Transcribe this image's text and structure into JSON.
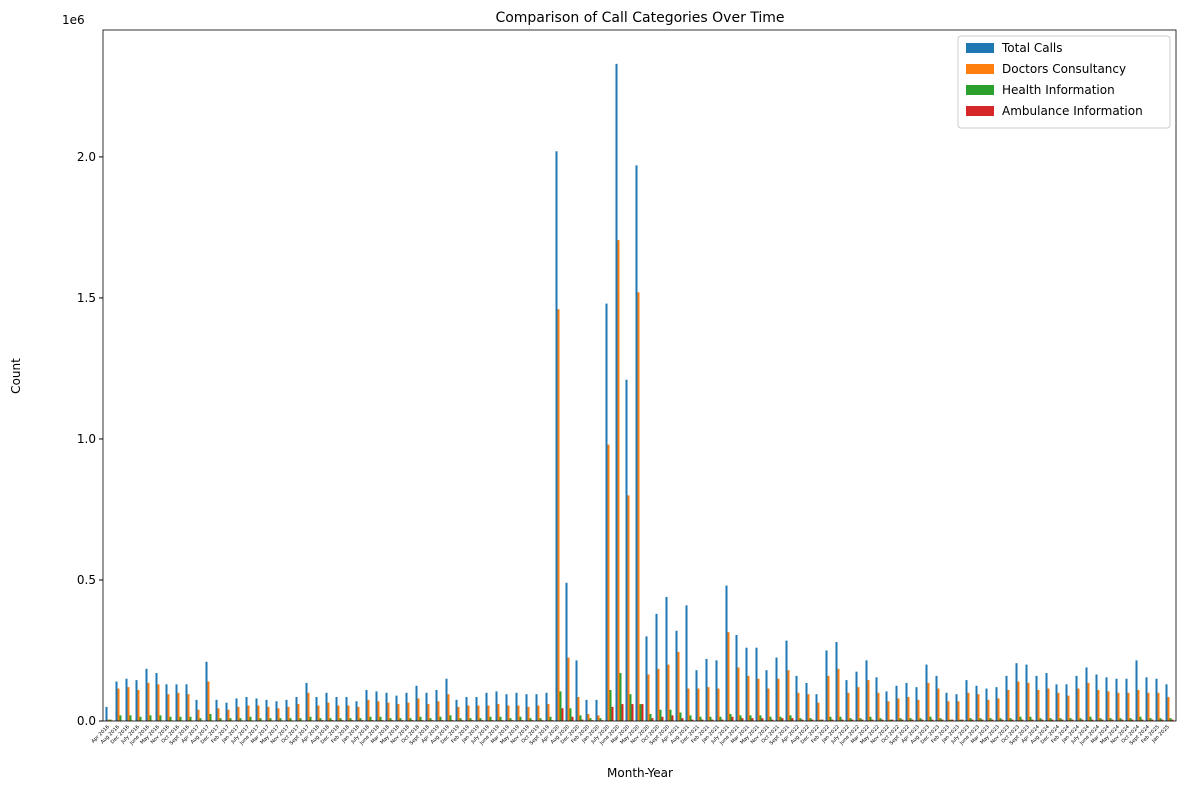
{
  "chart_data": {
    "type": "bar",
    "title": "Comparison of Call Categories Over Time",
    "x_label": "Month-Year",
    "y_label": "Count",
    "y_offset_label": "1e6",
    "legend": "upper right",
    "categories": [
      "Apr 2016",
      "Aug 2016",
      "Dec 2016",
      "July 2016",
      "June 2016",
      "May 2016",
      "Nov 2016",
      "Oct 2016",
      "Sept 2016",
      "Apr 2017",
      "Aug 2017",
      "Dec 2017",
      "Feb 2017",
      "Jan 2017",
      "July 2017",
      "June 2017",
      "Mar 2017",
      "May 2017",
      "Nov 2017",
      "Oct 2017",
      "Sept 2017",
      "Apr 2018",
      "Aug 2018",
      "Dec 2018",
      "Feb 2018",
      "Jan 2018",
      "July 2018",
      "June 2018",
      "Mar 2018",
      "May 2018",
      "Nov 2018",
      "Oct 2018",
      "Sept 2018",
      "Apr 2019",
      "Aug 2019",
      "Dec 2019",
      "Feb 2019",
      "Jan 2019",
      "July 2019",
      "June 2019",
      "Mar 2019",
      "May 2019",
      "Nov 2019",
      "Oct 2019",
      "Sept 2019",
      "Apr 2020",
      "Aug 2020",
      "Dec 2020",
      "Feb 2020",
      "Jan 2020",
      "July 2020",
      "June 2020",
      "Mar 2020",
      "May 2020",
      "Nov 2020",
      "Oct 2020",
      "Sept 2020",
      "Apr 2021",
      "Aug 2021",
      "Dec 2021",
      "Feb 2021",
      "Jan 2021",
      "July 2021",
      "June 2021",
      "Mar 2021",
      "May 2021",
      "Nov 2021",
      "Oct 2021",
      "Sept 2021",
      "Apr 2022",
      "Aug 2022",
      "Dec 2022",
      "Feb 2022",
      "Jan 2022",
      "July 2022",
      "June 2022",
      "Mar 2022",
      "May 2022",
      "Nov 2022",
      "Oct 2022",
      "Sept 2022",
      "Apr 2023",
      "Aug 2023",
      "Dec 2023",
      "Feb 2023",
      "Jan 2023",
      "July 2023",
      "June 2023",
      "Mar 2023",
      "May 2023",
      "Nov 2023",
      "Oct 2023",
      "Sept 2023",
      "Apr 2024",
      "Aug 2024",
      "Dec 2024",
      "Feb 2024",
      "Jan 2024",
      "July 2024",
      "June 2024",
      "Mar 2024",
      "May 2024",
      "Nov 2024",
      "Oct 2024",
      "Sept 2024",
      "Feb 2025",
      "Jan 2025"
    ],
    "series": [
      {
        "name": "Total Calls",
        "color": "#1f77b4",
        "values": [
          50000,
          140000,
          150000,
          145000,
          185000,
          170000,
          130000,
          130000,
          130000,
          75000,
          210000,
          75000,
          65000,
          80000,
          85000,
          80000,
          75000,
          70000,
          75000,
          85000,
          135000,
          85000,
          100000,
          85000,
          85000,
          70000,
          110000,
          105000,
          100000,
          90000,
          100000,
          125000,
          100000,
          110000,
          150000,
          75000,
          85000,
          85000,
          100000,
          105000,
          95000,
          100000,
          95000,
          95000,
          100000,
          2020000,
          490000,
          215000,
          75000,
          75000,
          1480000,
          2330000,
          1210000,
          1970000,
          300000,
          380000,
          440000,
          320000,
          410000,
          180000,
          220000,
          215000,
          480000,
          305000,
          260000,
          260000,
          180000,
          225000,
          285000,
          160000,
          135000,
          95000,
          250000,
          280000,
          145000,
          175000,
          215000,
          155000,
          105000,
          125000,
          135000,
          120000,
          200000,
          160000,
          100000,
          95000,
          145000,
          125000,
          115000,
          120000,
          160000,
          205000,
          200000,
          160000,
          170000,
          130000,
          130000,
          160000,
          190000,
          165000,
          155000,
          150000,
          150000,
          215000,
          155000,
          150000,
          130000
        ]
      },
      {
        "name": "Doctors Consultancy",
        "color": "#ff7f0e",
        "values": [
          5000,
          115000,
          120000,
          110000,
          135000,
          130000,
          95000,
          100000,
          95000,
          40000,
          140000,
          45000,
          40000,
          50000,
          55000,
          55000,
          50000,
          45000,
          50000,
          60000,
          100000,
          55000,
          65000,
          55000,
          55000,
          50000,
          75000,
          70000,
          65000,
          60000,
          65000,
          80000,
          60000,
          70000,
          95000,
          50000,
          55000,
          55000,
          55000,
          60000,
          55000,
          55000,
          50000,
          55000,
          60000,
          1460000,
          225000,
          85000,
          25000,
          20000,
          980000,
          1705000,
          800000,
          1520000,
          165000,
          185000,
          200000,
          245000,
          115000,
          115000,
          120000,
          115000,
          315000,
          190000,
          160000,
          150000,
          115000,
          150000,
          180000,
          100000,
          95000,
          65000,
          160000,
          185000,
          100000,
          120000,
          145000,
          100000,
          70000,
          80000,
          85000,
          75000,
          135000,
          115000,
          70000,
          70000,
          100000,
          95000,
          75000,
          80000,
          110000,
          140000,
          135000,
          110000,
          115000,
          100000,
          90000,
          115000,
          135000,
          110000,
          105000,
          100000,
          100000,
          110000,
          100000,
          100000,
          85000
        ]
      },
      {
        "name": "Health Information",
        "color": "#2ca02c",
        "values": [
          5000,
          20000,
          20000,
          15000,
          20000,
          20000,
          15000,
          15000,
          15000,
          10000,
          25000,
          10000,
          10000,
          10000,
          15000,
          10000,
          10000,
          10000,
          10000,
          10000,
          15000,
          10000,
          10000,
          10000,
          10000,
          10000,
          15000,
          15000,
          10000,
          10000,
          10000,
          15000,
          10000,
          15000,
          20000,
          10000,
          10000,
          10000,
          15000,
          15000,
          10000,
          15000,
          10000,
          10000,
          15000,
          105000,
          45000,
          20000,
          10000,
          10000,
          110000,
          170000,
          95000,
          60000,
          25000,
          40000,
          40000,
          30000,
          20000,
          15000,
          15000,
          15000,
          25000,
          20000,
          20000,
          20000,
          15000,
          15000,
          20000,
          10000,
          10000,
          5000,
          15000,
          15000,
          10000,
          10000,
          15000,
          10000,
          5000,
          10000,
          10000,
          10000,
          15000,
          10000,
          5000,
          5000,
          10000,
          10000,
          10000,
          10000,
          10000,
          15000,
          15000,
          10000,
          10000,
          10000,
          10000,
          10000,
          15000,
          10000,
          10000,
          10000,
          10000,
          15000,
          10000,
          10000,
          10000
        ]
      },
      {
        "name": "Ambulance Information",
        "color": "#d62728",
        "values": [
          2000,
          2000,
          2000,
          2000,
          2000,
          2000,
          2000,
          2000,
          2000,
          2000,
          2000,
          2000,
          2000,
          2000,
          2000,
          2000,
          2000,
          2000,
          2000,
          2000,
          2000,
          3000,
          3000,
          3000,
          3000,
          3000,
          3000,
          3000,
          3000,
          3000,
          3000,
          3000,
          3000,
          3000,
          3000,
          3000,
          3000,
          3000,
          3000,
          3000,
          3000,
          3000,
          3000,
          3000,
          3000,
          45000,
          15000,
          5000,
          3000,
          3000,
          50000,
          60000,
          60000,
          60000,
          10000,
          15000,
          20000,
          10000,
          5000,
          5000,
          5000,
          5000,
          15000,
          10000,
          10000,
          10000,
          5000,
          10000,
          10000,
          5000,
          5000,
          5000,
          5000,
          5000,
          5000,
          5000,
          5000,
          5000,
          5000,
          5000,
          5000,
          5000,
          5000,
          5000,
          5000,
          5000,
          5000,
          5000,
          5000,
          5000,
          5000,
          5000,
          5000,
          5000,
          5000,
          5000,
          5000,
          5000,
          5000,
          5000,
          5000,
          5000,
          5000,
          5000,
          5000,
          5000,
          5000
        ]
      }
    ],
    "ylim": [
      0,
      2450000
    ],
    "yticks": [
      {
        "value": 0,
        "label": "0.0"
      },
      {
        "value": 500000,
        "label": "0.5"
      },
      {
        "value": 1000000,
        "label": "1.0"
      },
      {
        "value": 1500000,
        "label": "1.5"
      },
      {
        "value": 2000000,
        "label": "2.0"
      }
    ]
  }
}
